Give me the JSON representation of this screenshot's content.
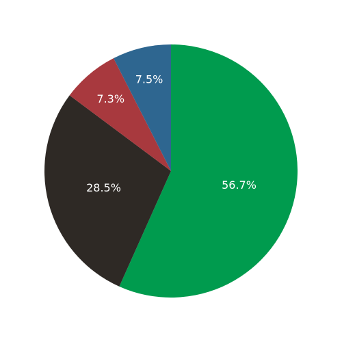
{
  "chart_data": {
    "type": "pie",
    "values": [
      56.7,
      28.5,
      7.3,
      7.5
    ],
    "value_labels": [
      "56.7%",
      "28.5%",
      "7.3%",
      "7.5%"
    ],
    "colors": [
      "#009b4e",
      "#2e2925",
      "#a8393e",
      "#2e6690"
    ]
  }
}
